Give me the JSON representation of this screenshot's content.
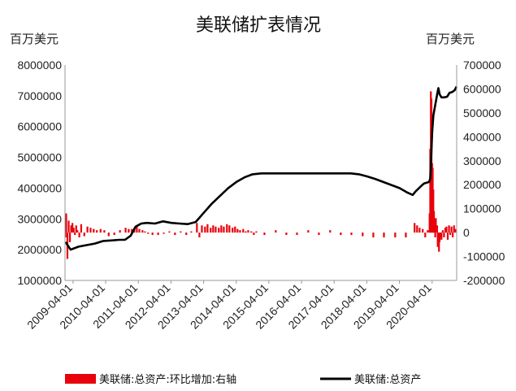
{
  "chart_data": {
    "type": "bar",
    "title": "美联储扩表情况",
    "left_axis": {
      "unit_label": "百万美元",
      "range": [
        1000000,
        8000000
      ],
      "ticks": [
        "8000000",
        "7000000",
        "6000000",
        "5000000",
        "4000000",
        "3000000",
        "2000000",
        "1000000"
      ]
    },
    "right_axis": {
      "unit_label": "百万美元",
      "range": [
        -200000,
        700000
      ],
      "ticks": [
        "700000",
        "600000",
        "500000",
        "400000",
        "300000",
        "200000",
        "100000",
        "0",
        "-100000",
        "-200000"
      ]
    },
    "x_axis": {
      "range": [
        "2009-01-01",
        "2021-01-01"
      ],
      "ticks": [
        "2009-04-01",
        "2010-04-01",
        "2011-04-01",
        "2012-04-01",
        "2013-04-01",
        "2014-04-01",
        "2015-04-01",
        "2016-04-01",
        "2017-04-01",
        "2018-04-01",
        "2019-04-01",
        "2020-04-01"
      ]
    },
    "legend": {
      "placement": "bottom"
    },
    "series": [
      {
        "name": "美联储:总资产:环比增加:右轴",
        "kind": "bar",
        "axis": "right",
        "color": "#e8000b",
        "x": [
          "2009-01-07",
          "2009-01-14",
          "2009-01-28",
          "2009-02-11",
          "2009-02-25",
          "2009-03-11",
          "2009-03-25",
          "2009-04-08",
          "2009-04-22",
          "2009-05-06",
          "2009-05-20",
          "2009-06-10",
          "2009-07-01",
          "2009-08-05",
          "2009-09-09",
          "2009-10-14",
          "2009-11-18",
          "2009-12-23",
          "2010-02-03",
          "2010-03-17",
          "2010-05-05",
          "2010-07-07",
          "2010-09-08",
          "2010-11-10",
          "2010-12-15",
          "2011-01-19",
          "2011-02-16",
          "2011-03-16",
          "2011-04-13",
          "2011-05-18",
          "2011-06-15",
          "2011-07-20",
          "2011-09-07",
          "2011-11-09",
          "2012-01-11",
          "2012-03-14",
          "2012-05-16",
          "2012-07-18",
          "2012-09-19",
          "2012-11-14",
          "2013-01-16",
          "2013-02-13",
          "2013-03-13",
          "2013-04-17",
          "2013-05-15",
          "2013-06-19",
          "2013-07-17",
          "2013-08-14",
          "2013-09-18",
          "2013-10-16",
          "2013-11-13",
          "2013-12-18",
          "2014-01-15",
          "2014-02-19",
          "2014-03-19",
          "2014-04-16",
          "2014-05-14",
          "2014-06-18",
          "2014-07-16",
          "2014-08-13",
          "2014-09-17",
          "2014-10-15",
          "2014-11-12",
          "2015-02-11",
          "2015-06-17",
          "2015-10-14",
          "2016-02-10",
          "2016-06-15",
          "2016-10-12",
          "2017-02-15",
          "2017-06-14",
          "2017-10-11",
          "2018-02-14",
          "2018-06-13",
          "2018-10-10",
          "2019-02-13",
          "2019-06-12",
          "2019-09-18",
          "2019-10-16",
          "2019-11-13",
          "2019-12-18",
          "2020-01-15",
          "2020-02-12",
          "2020-03-04",
          "2020-03-11",
          "2020-03-18",
          "2020-03-25",
          "2020-04-01",
          "2020-04-08",
          "2020-04-15",
          "2020-04-22",
          "2020-04-29",
          "2020-05-06",
          "2020-05-13",
          "2020-05-27",
          "2020-06-03",
          "2020-06-17",
          "2020-06-24",
          "2020-07-01",
          "2020-07-15",
          "2020-07-29",
          "2020-08-12",
          "2020-08-26",
          "2020-09-09",
          "2020-09-23",
          "2020-10-07",
          "2020-10-21",
          "2020-11-04",
          "2020-11-18",
          "2020-12-02",
          "2020-12-16"
        ],
        "values": [
          -20000,
          80000,
          -110000,
          50000,
          -40000,
          30000,
          40000,
          20000,
          -10000,
          30000,
          10000,
          -20000,
          35000,
          -15000,
          25000,
          20000,
          15000,
          10000,
          15000,
          10000,
          -15000,
          -10000,
          10000,
          20000,
          15000,
          15000,
          20000,
          25000,
          15000,
          10000,
          5000,
          -5000,
          -10000,
          -10000,
          -5000,
          5000,
          -10000,
          5000,
          -10000,
          5000,
          40000,
          -20000,
          30000,
          25000,
          35000,
          20000,
          30000,
          25000,
          20000,
          30000,
          25000,
          35000,
          30000,
          20000,
          25000,
          15000,
          10000,
          15000,
          5000,
          10000,
          5000,
          -10000,
          5000,
          -10000,
          10000,
          -10000,
          -10000,
          10000,
          -10000,
          10000,
          -10000,
          -10000,
          -15000,
          -20000,
          -20000,
          -20000,
          -20000,
          40000,
          30000,
          20000,
          15000,
          -20000,
          10000,
          80000,
          350000,
          590000,
          560000,
          290000,
          270000,
          180000,
          90000,
          60000,
          -20000,
          60000,
          30000,
          -60000,
          -80000,
          -40000,
          -20000,
          -30000,
          10000,
          -20000,
          20000,
          25000,
          -30000,
          30000,
          -10000,
          25000,
          -20000,
          30000,
          15000
        ]
      },
      {
        "name": "美联储:总资产",
        "kind": "line",
        "axis": "left",
        "color": "#000000",
        "x": [
          "2009-01-07",
          "2009-03-04",
          "2009-06-03",
          "2009-09-02",
          "2009-12-02",
          "2010-03-03",
          "2010-06-02",
          "2010-09-01",
          "2010-11-03",
          "2011-01-05",
          "2011-03-02",
          "2011-05-04",
          "2011-07-06",
          "2011-10-05",
          "2012-01-04",
          "2012-04-04",
          "2012-07-04",
          "2012-10-03",
          "2013-01-02",
          "2013-04-03",
          "2013-07-03",
          "2013-10-02",
          "2014-01-01",
          "2014-04-02",
          "2014-07-02",
          "2014-10-01",
          "2015-01-07",
          "2015-07-01",
          "2016-01-06",
          "2016-07-06",
          "2017-01-04",
          "2017-07-05",
          "2017-10-04",
          "2018-01-03",
          "2018-04-04",
          "2018-07-04",
          "2018-10-03",
          "2019-01-02",
          "2019-04-03",
          "2019-07-03",
          "2019-08-28",
          "2019-10-02",
          "2019-12-04",
          "2020-01-01",
          "2020-02-26",
          "2020-03-11",
          "2020-03-18",
          "2020-03-25",
          "2020-04-01",
          "2020-04-15",
          "2020-05-06",
          "2020-06-03",
          "2020-06-10",
          "2020-06-24",
          "2020-07-15",
          "2020-08-12",
          "2020-09-16",
          "2020-10-14",
          "2020-11-11",
          "2020-12-09",
          "2020-12-30"
        ],
        "values": [
          2250000,
          2000000,
          2100000,
          2150000,
          2200000,
          2280000,
          2300000,
          2320000,
          2320000,
          2450000,
          2750000,
          2850000,
          2870000,
          2850000,
          2920000,
          2870000,
          2850000,
          2830000,
          2900000,
          3200000,
          3500000,
          3750000,
          4000000,
          4200000,
          4350000,
          4450000,
          4480000,
          4480000,
          4480000,
          4480000,
          4480000,
          4480000,
          4480000,
          4450000,
          4380000,
          4300000,
          4200000,
          4100000,
          4000000,
          3850000,
          3780000,
          3900000,
          4080000,
          4150000,
          4200000,
          4300000,
          4660000,
          5250000,
          5800000,
          6360000,
          6700000,
          7150000,
          7250000,
          7050000,
          6950000,
          6950000,
          6970000,
          7100000,
          7120000,
          7180000,
          7300000
        ]
      }
    ]
  }
}
